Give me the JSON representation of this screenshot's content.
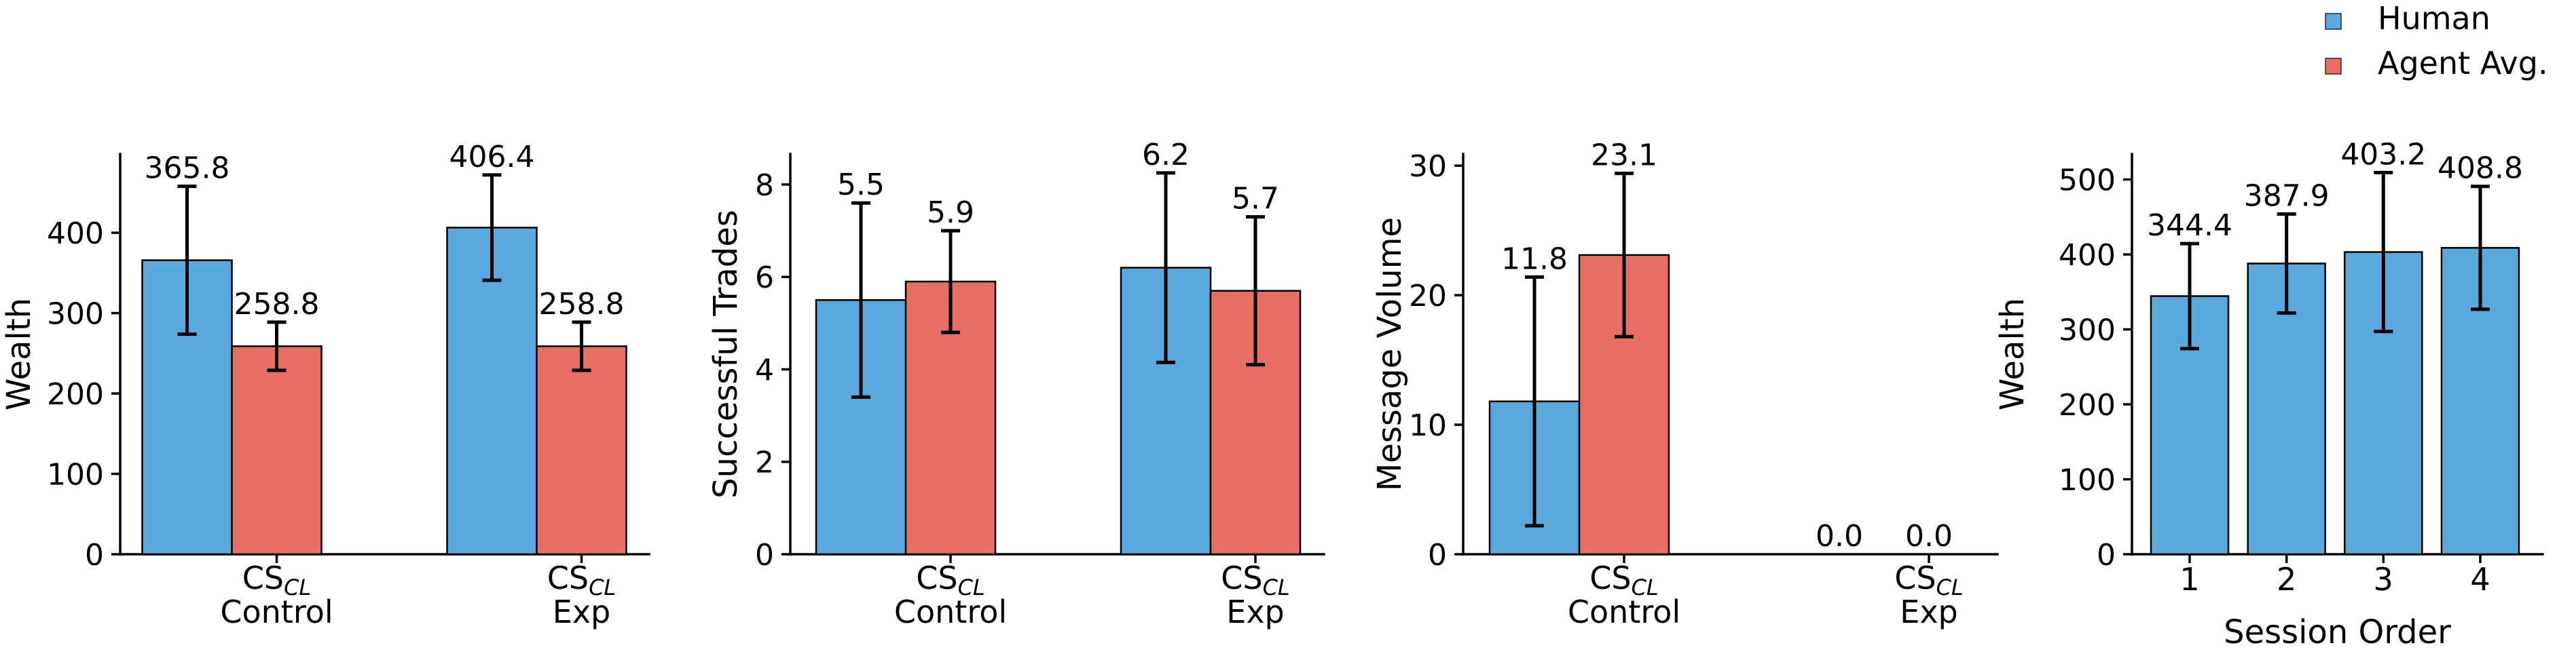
{
  "figure": {
    "background": "#ffffff",
    "text_color": "#000000"
  },
  "colors": {
    "human": "#5AA9DC",
    "agent": "#E66E62",
    "bar_edge": "#000000",
    "error_bar": "#000000"
  },
  "legend": {
    "position": "top-right",
    "items": [
      {
        "label": "Human",
        "color": "#5AA9DC"
      },
      {
        "label": "Agent Avg.",
        "color": "#E66E62"
      }
    ]
  },
  "chart_data": [
    {
      "type": "bar",
      "title": "",
      "ylabel": "Wealth",
      "xlabel": "",
      "ylim": [
        0,
        498
      ],
      "yticks": [
        0,
        100,
        200,
        300,
        400
      ],
      "grid": false,
      "legend_position": "figure-top-right",
      "categories": [
        {
          "line1_main": "CS",
          "line1_sub": "CL",
          "line2": "Control"
        },
        {
          "line1_main": "CS",
          "line1_sub": "CL",
          "line2": "Exp"
        }
      ],
      "series": [
        {
          "name": "Human",
          "color": "#5AA9DC",
          "values": [
            365.8,
            406.4
          ],
          "errors": [
            92,
            65.5
          ],
          "labels": [
            "365.8",
            "406.4"
          ]
        },
        {
          "name": "Agent Avg.",
          "color": "#E66E62",
          "values": [
            258.8,
            258.8
          ],
          "errors": [
            30,
            30
          ],
          "labels": [
            "258.8",
            "258.8"
          ]
        }
      ]
    },
    {
      "type": "bar",
      "title": "",
      "ylabel": "Successful Trades",
      "xlabel": "",
      "ylim": [
        0,
        8.66
      ],
      "yticks": [
        0,
        2,
        4,
        6,
        8
      ],
      "grid": false,
      "categories": [
        {
          "line1_main": "CS",
          "line1_sub": "CL",
          "line2": "Control"
        },
        {
          "line1_main": "CS",
          "line1_sub": "CL",
          "line2": "Exp"
        }
      ],
      "series": [
        {
          "name": "Human",
          "color": "#5AA9DC",
          "values": [
            5.5,
            6.2
          ],
          "errors": [
            2.1,
            2.05
          ],
          "labels": [
            "5.5",
            "6.2"
          ]
        },
        {
          "name": "Agent Avg.",
          "color": "#E66E62",
          "values": [
            5.9,
            5.7
          ],
          "errors": [
            1.1,
            1.6
          ],
          "labels": [
            "5.9",
            "5.7"
          ]
        }
      ]
    },
    {
      "type": "bar",
      "title": "",
      "ylabel": "Message Volume",
      "xlabel": "",
      "ylim": [
        0,
        30.9
      ],
      "yticks": [
        0,
        10,
        20,
        30
      ],
      "grid": false,
      "categories": [
        {
          "line1_main": "CS",
          "line1_sub": "CL",
          "line2": "Control"
        },
        {
          "line1_main": "CS",
          "line1_sub": "CL",
          "line2": "Exp"
        }
      ],
      "series": [
        {
          "name": "Human",
          "color": "#5AA9DC",
          "values": [
            11.8,
            0.0
          ],
          "errors": [
            9.6,
            0
          ],
          "labels": [
            "11.8",
            "0.0"
          ]
        },
        {
          "name": "Agent Avg.",
          "color": "#E66E62",
          "values": [
            23.1,
            0.0
          ],
          "errors": [
            6.3,
            0
          ],
          "labels": [
            "23.1",
            "0.0"
          ]
        }
      ]
    },
    {
      "type": "bar",
      "title": "",
      "ylabel": "Wealth",
      "xlabel": "Session Order",
      "ylim": [
        0,
        534
      ],
      "yticks": [
        0,
        100,
        200,
        300,
        400,
        500
      ],
      "grid": false,
      "categories": [
        {
          "line1_main": "1"
        },
        {
          "line1_main": "2"
        },
        {
          "line1_main": "3"
        },
        {
          "line1_main": "4"
        }
      ],
      "series": [
        {
          "name": "Human",
          "color": "#5AA9DC",
          "values": [
            344.4,
            387.9,
            403.2,
            408.8
          ],
          "errors": [
            70,
            66,
            106,
            82
          ],
          "labels": [
            "344.4",
            "387.9",
            "403.2",
            "408.8"
          ]
        }
      ]
    }
  ]
}
